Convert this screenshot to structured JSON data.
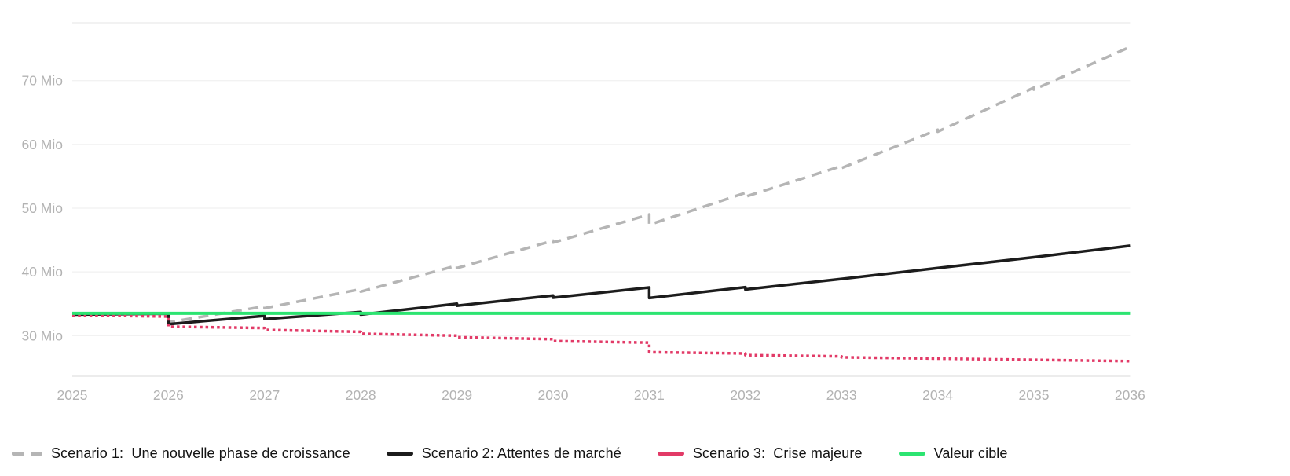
{
  "chart_data": {
    "type": "line",
    "title": "",
    "xlabel": "",
    "ylabel": "",
    "grid": true,
    "legend_position": "bottom",
    "xlim": [
      2025,
      2036
    ],
    "ylim": [
      24,
      79
    ],
    "x_axis": {
      "ticks": [
        2025,
        2026,
        2027,
        2028,
        2029,
        2030,
        2031,
        2032,
        2033,
        2034,
        2035,
        2036
      ]
    },
    "y_axis": {
      "unit": "Mio",
      "ticks": [
        {
          "value": 30,
          "label": "30 Mio"
        },
        {
          "value": 40,
          "label": "40 Mio"
        },
        {
          "value": 50,
          "label": "50 Mio"
        },
        {
          "value": 60,
          "label": "60 Mio"
        },
        {
          "value": 70,
          "label": "70 Mio"
        }
      ]
    },
    "series": [
      {
        "name": "scenario-1",
        "label": "Scenario 1:  Une nouvelle phase de croissance",
        "color": "#b5b5b5",
        "line_style": "dashed",
        "points": [
          [
            2025,
            33.3
          ],
          [
            2026,
            33.45
          ],
          [
            2026,
            32.1
          ],
          [
            2027,
            34.6
          ],
          [
            2027,
            34.3
          ],
          [
            2028,
            37.3
          ],
          [
            2028,
            36.9
          ],
          [
            2029,
            41.0
          ],
          [
            2029,
            40.6
          ],
          [
            2030,
            44.9
          ],
          [
            2030,
            44.6
          ],
          [
            2031,
            49.0
          ],
          [
            2031,
            47.4
          ],
          [
            2032,
            52.4
          ],
          [
            2032,
            51.8
          ],
          [
            2033,
            56.6
          ],
          [
            2033,
            56.3
          ],
          [
            2034,
            62.3
          ],
          [
            2034,
            62.0
          ],
          [
            2035,
            68.9
          ],
          [
            2035,
            68.6
          ],
          [
            2036,
            75.3
          ]
        ]
      },
      {
        "name": "scenario-2",
        "label": "Scenario 2: Attentes de marché",
        "color": "#1c1c1c",
        "line_style": "solid",
        "points": [
          [
            2025,
            33.3
          ],
          [
            2026,
            33.45
          ],
          [
            2026,
            31.8
          ],
          [
            2027,
            33.1
          ],
          [
            2027,
            32.6
          ],
          [
            2028,
            33.7
          ],
          [
            2028,
            33.3
          ],
          [
            2029,
            35.0
          ],
          [
            2029,
            34.7
          ],
          [
            2030,
            36.3
          ],
          [
            2030,
            35.95
          ],
          [
            2031,
            37.55
          ],
          [
            2031,
            35.9
          ],
          [
            2032,
            37.6
          ],
          [
            2032,
            37.25
          ],
          [
            2033,
            38.9
          ],
          [
            2034,
            40.6
          ],
          [
            2035,
            42.3
          ],
          [
            2036,
            44.1
          ]
        ]
      },
      {
        "name": "scenario-3",
        "label": "Scenario 3:  Crise majeure",
        "color": "#e23a67",
        "line_style": "dotted",
        "points": [
          [
            2025,
            33.2
          ],
          [
            2026,
            33.0
          ],
          [
            2026,
            31.4
          ],
          [
            2027,
            31.2
          ],
          [
            2027,
            30.9
          ],
          [
            2028,
            30.6
          ],
          [
            2028,
            30.3
          ],
          [
            2029,
            30.0
          ],
          [
            2029,
            29.75
          ],
          [
            2030,
            29.45
          ],
          [
            2030,
            29.15
          ],
          [
            2031,
            28.9
          ],
          [
            2031,
            27.4
          ],
          [
            2032,
            27.2
          ],
          [
            2032,
            26.95
          ],
          [
            2033,
            26.75
          ],
          [
            2033,
            26.6
          ],
          [
            2034,
            26.4
          ],
          [
            2035,
            26.2
          ],
          [
            2036,
            26.0
          ]
        ]
      },
      {
        "name": "valeur-cible",
        "label": "Valeur cible",
        "color": "#2ce471",
        "line_style": "solid",
        "points": [
          [
            2025,
            33.5
          ],
          [
            2036,
            33.5
          ]
        ]
      }
    ]
  }
}
